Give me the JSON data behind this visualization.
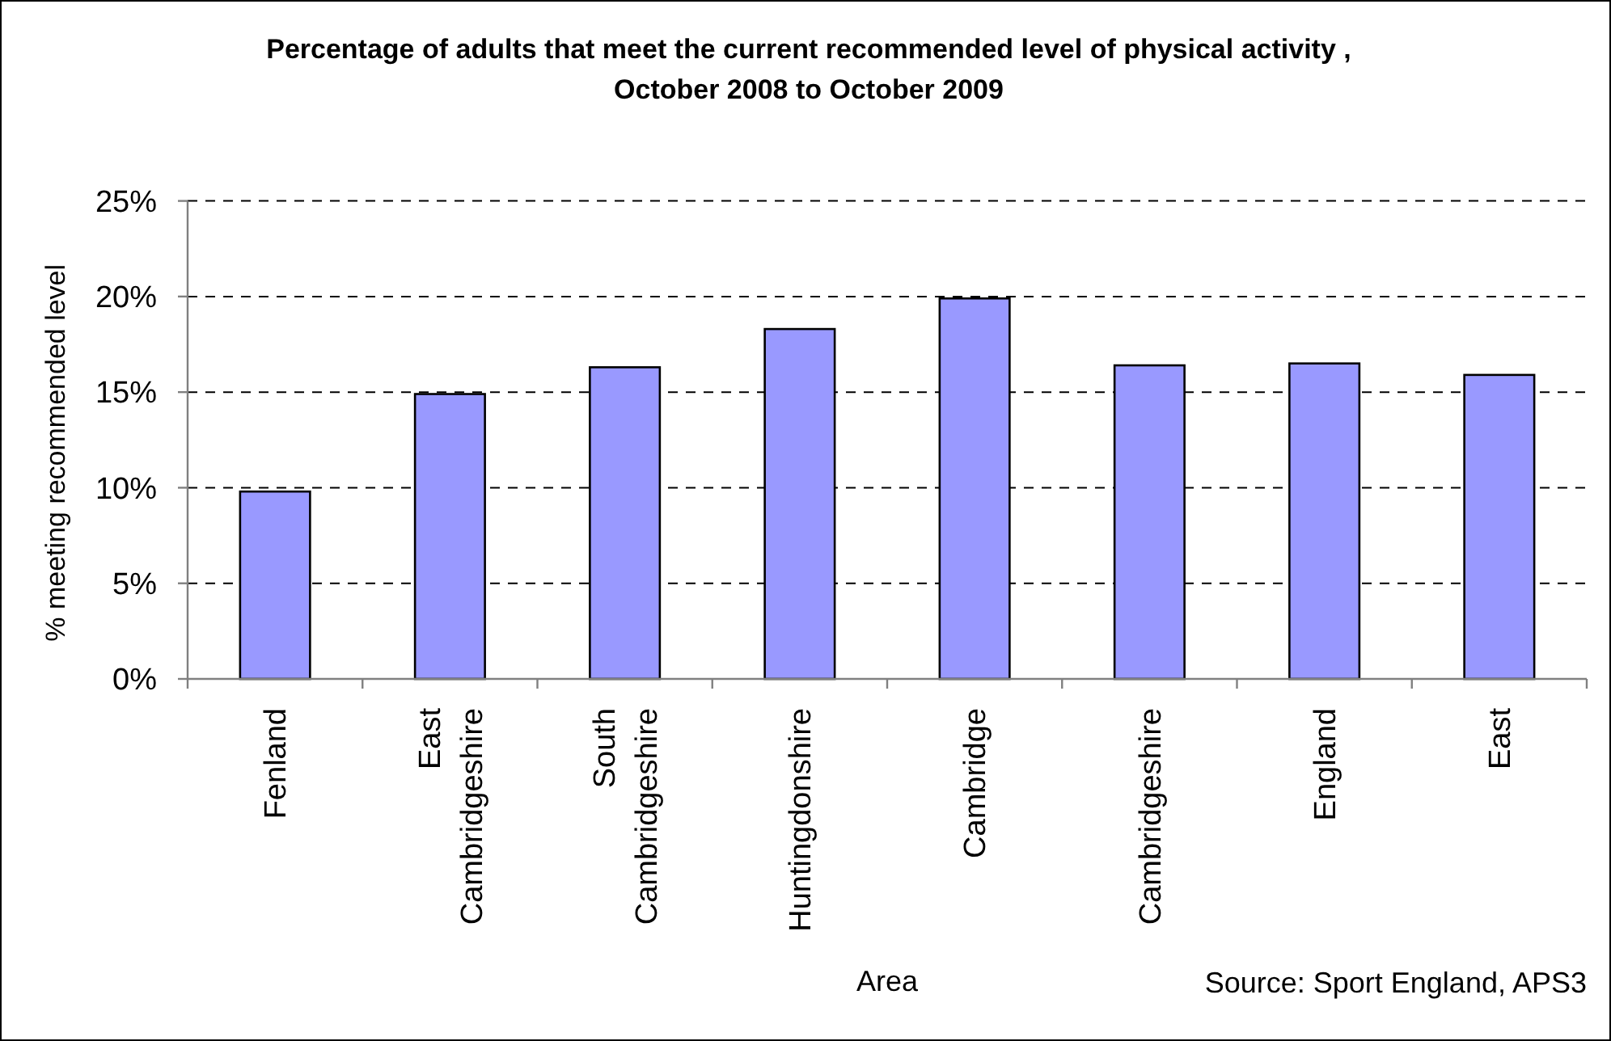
{
  "chart_data": {
    "type": "bar",
    "title": "Percentage of adults that meet the current recommended level of physical activity ,\nOctober 2008 to October 2009",
    "xlabel": "Area",
    "ylabel": "% meeting recommended level",
    "categories": [
      "Fenland",
      "East Cambridgeshire",
      "South Cambridgeshire",
      "Huntingdonshire",
      "Cambridge",
      "Cambridgeshire",
      "England",
      "East"
    ],
    "values": [
      9.8,
      14.9,
      16.3,
      18.3,
      19.9,
      16.4,
      16.5,
      15.9
    ],
    "color": "#9999ff",
    "ylim": [
      0,
      25
    ],
    "yticks": [
      {
        "value": 0,
        "label": "0%"
      },
      {
        "value": 5,
        "label": "5%"
      },
      {
        "value": 10,
        "label": "10%"
      },
      {
        "value": 15,
        "label": "15%"
      },
      {
        "value": 20,
        "label": "20%"
      },
      {
        "value": 25,
        "label": "25%"
      }
    ],
    "grid": "y",
    "annotations": [
      "Source: Sport England, APS3"
    ]
  }
}
